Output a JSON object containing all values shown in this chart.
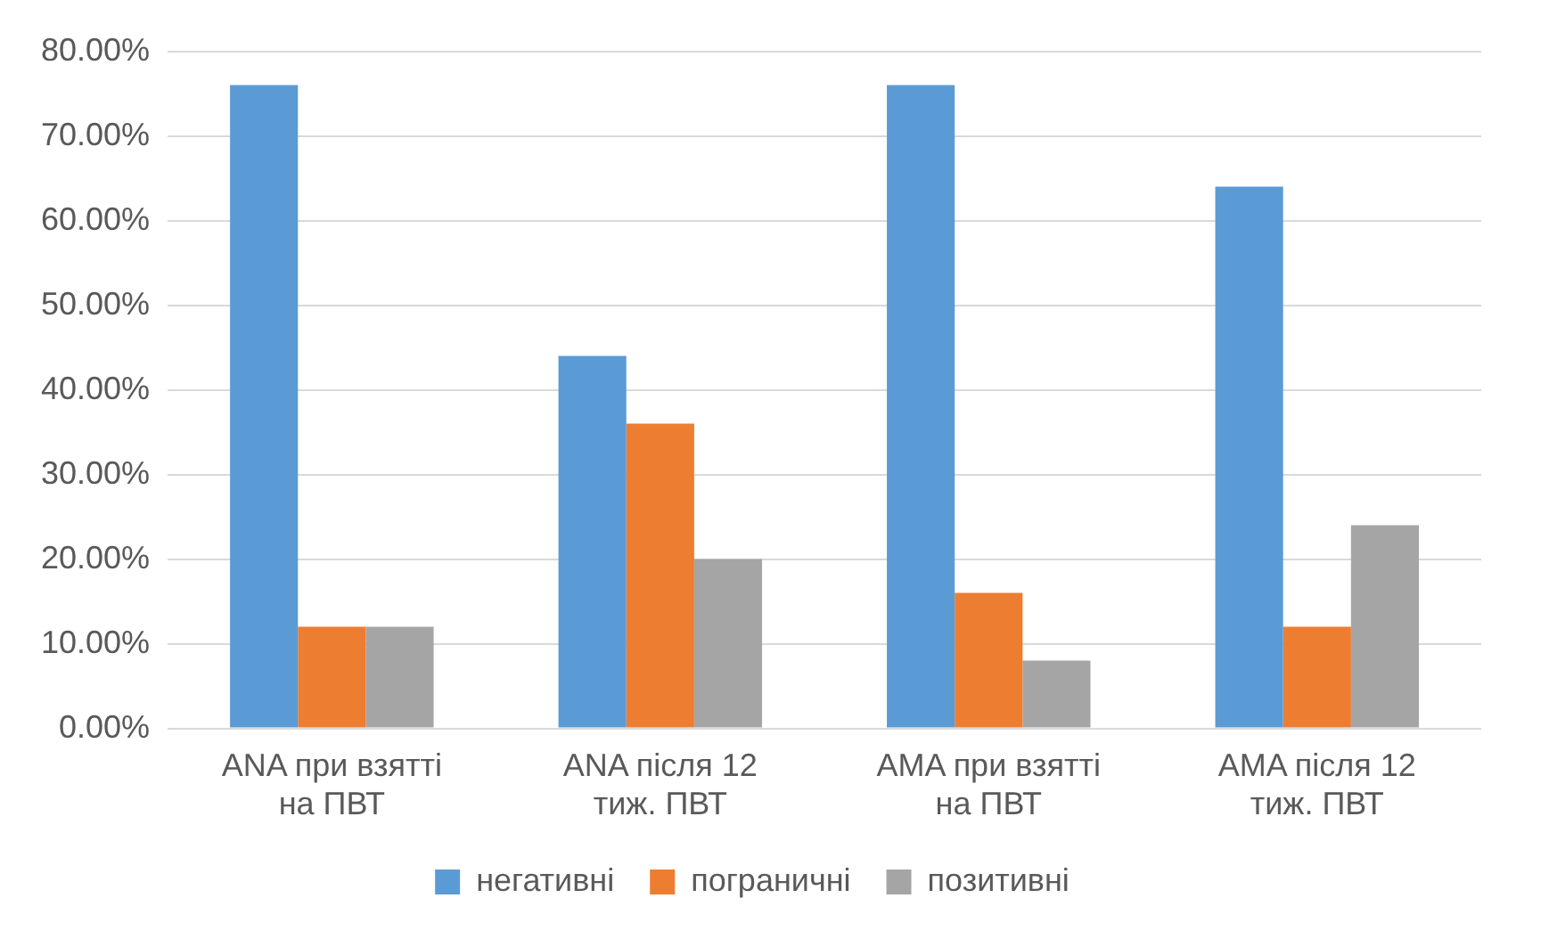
{
  "chart_data": {
    "type": "bar",
    "categories": [
      "ANA при взятті на ПВТ",
      "ANA після 12 тиж. ПВТ",
      "AMA при взятті на ПВТ",
      "AMA після 12 тиж. ПВТ"
    ],
    "series": [
      {
        "name": "негативні",
        "color": "#5b9bd5",
        "values": [
          76,
          44,
          76,
          64
        ]
      },
      {
        "name": "пограничні",
        "color": "#ed7d31",
        "values": [
          12,
          36,
          16,
          12
        ]
      },
      {
        "name": "позитивні",
        "color": "#a5a5a5",
        "values": [
          12,
          20,
          8,
          24
        ]
      }
    ],
    "ylim": [
      0,
      80
    ],
    "yticks": [
      {
        "value": 0,
        "label": "0.00%"
      },
      {
        "value": 10,
        "label": "10.00%"
      },
      {
        "value": 20,
        "label": "20.00%"
      },
      {
        "value": 30,
        "label": "30.00%"
      },
      {
        "value": 40,
        "label": "40.00%"
      },
      {
        "value": 50,
        "label": "50.00%"
      },
      {
        "value": 60,
        "label": "60.00%"
      },
      {
        "value": 70,
        "label": "70.00%"
      },
      {
        "value": 80,
        "label": "80.00%"
      }
    ],
    "grid": "y",
    "legend": "bottom"
  }
}
